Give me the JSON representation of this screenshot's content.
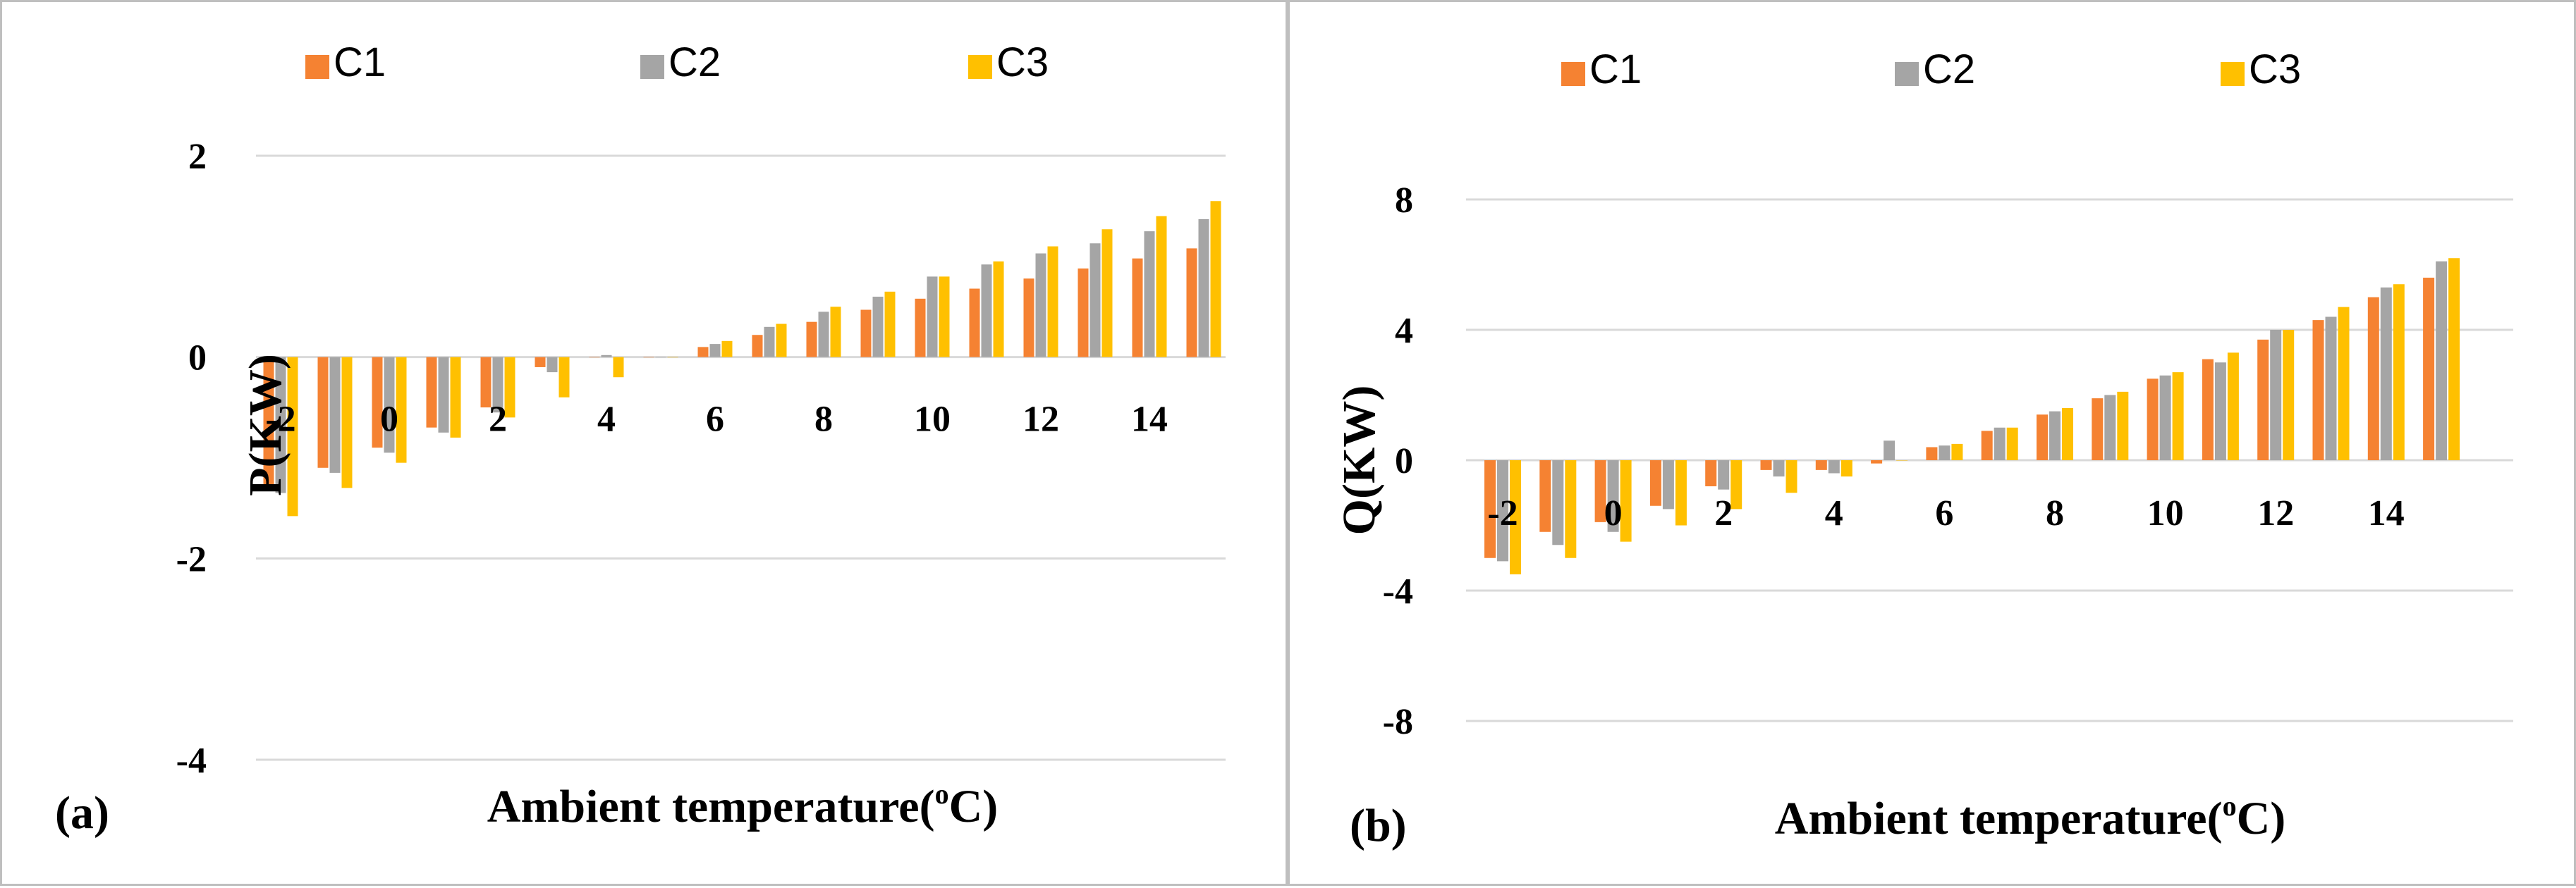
{
  "series_colors": {
    "C1": "#F58232",
    "C2": "#A5A5A5",
    "C3": "#FFC000"
  },
  "chart_data": [
    {
      "type": "bar",
      "panel_label": "(a)",
      "xlabel": "Ambient temperature(",
      "xlabel_sup": "o",
      "xlabel_suffix": "C)",
      "ylabel": "P(KW)",
      "ylim": [
        -4,
        2
      ],
      "yticks": [
        2,
        0,
        -2,
        -4
      ],
      "x_tick_labels": [
        "-2",
        "0",
        "2",
        "4",
        "6",
        "8",
        "10",
        "12",
        "14"
      ],
      "categories": [
        -2,
        -1,
        0,
        1,
        2,
        3,
        4,
        5,
        6,
        7,
        8,
        9,
        10,
        11,
        12,
        13,
        14,
        15
      ],
      "series": [
        {
          "name": "C1",
          "values": [
            -1.3,
            -1.1,
            -0.9,
            -0.7,
            -0.5,
            -0.1,
            0,
            0,
            0.1,
            0.22,
            0.35,
            0.47,
            0.58,
            0.68,
            0.78,
            0.88,
            0.98,
            1.08
          ]
        },
        {
          "name": "C2",
          "values": [
            -1.35,
            -1.15,
            -0.95,
            -0.75,
            -0.55,
            -0.15,
            0.02,
            0,
            0.13,
            0.3,
            0.45,
            0.6,
            0.8,
            0.92,
            1.03,
            1.13,
            1.25,
            1.37
          ]
        },
        {
          "name": "C3",
          "values": [
            -1.58,
            -1.3,
            -1.05,
            -0.8,
            -0.6,
            -0.4,
            -0.2,
            0,
            0.16,
            0.33,
            0.5,
            0.65,
            0.8,
            0.95,
            1.1,
            1.27,
            1.4,
            1.55
          ]
        }
      ]
    },
    {
      "type": "bar",
      "panel_label": "(b)",
      "xlabel": "Ambient temperature(",
      "xlabel_sup": "o",
      "xlabel_suffix": "C)",
      "ylabel": "Q(KW)",
      "ylim": [
        -8,
        8
      ],
      "yticks": [
        8,
        4,
        0,
        -4,
        -8
      ],
      "x_tick_labels": [
        "-2",
        "0",
        "2",
        "4",
        "6",
        "8",
        "10",
        "12",
        "14"
      ],
      "categories": [
        -2,
        -1,
        0,
        1,
        2,
        3,
        4,
        5,
        6,
        7,
        8,
        9,
        10,
        11,
        12,
        13,
        14,
        15
      ],
      "series": [
        {
          "name": "C1",
          "values": [
            -3.0,
            -2.2,
            -1.9,
            -1.4,
            -0.8,
            -0.3,
            -0.3,
            -0.1,
            0.4,
            0.9,
            1.4,
            1.9,
            2.5,
            3.1,
            3.7,
            4.3,
            5.0,
            5.6
          ]
        },
        {
          "name": "C2",
          "values": [
            -3.1,
            -2.6,
            -2.2,
            -1.5,
            -0.9,
            -0.5,
            -0.4,
            0.6,
            0.45,
            1.0,
            1.5,
            2.0,
            2.6,
            3.0,
            4.0,
            4.4,
            5.3,
            6.1
          ]
        },
        {
          "name": "C3",
          "values": [
            -3.5,
            -3.0,
            -2.5,
            -2.0,
            -1.5,
            -1.0,
            -0.5,
            0,
            0.5,
            1.0,
            1.6,
            2.1,
            2.7,
            3.3,
            4.0,
            4.7,
            5.4,
            6.2
          ]
        }
      ]
    }
  ]
}
